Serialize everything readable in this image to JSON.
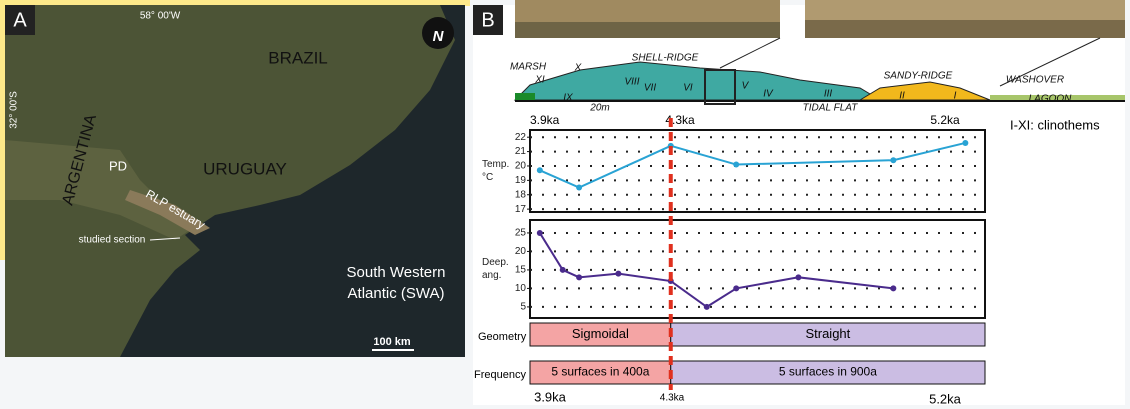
{
  "panel_a": {
    "label": "A",
    "longitude": "58° 00'W",
    "latitude": "32° 00'S",
    "places": [
      "BRAZIL",
      "ARGENTINA",
      "URUGUAY",
      "PD",
      "RLP estuary",
      "studied section"
    ],
    "ocean": [
      "South Western",
      "Atlantic (SWA)"
    ],
    "scale": "100 km",
    "north": "N"
  },
  "panel_b": {
    "label": "B",
    "section": {
      "labels": [
        "SHELL-RIDGE",
        "SANDY-RIDGE",
        "MARSH",
        "WASHOVER",
        "LAGOON",
        "TIDAL FLAT",
        "20m"
      ],
      "clinothems": [
        "XI",
        "X",
        "IX",
        "VIII",
        "VII",
        "VI",
        "V",
        "IV",
        "III",
        "II",
        "I"
      ]
    },
    "age_labels_top": [
      "3.9ka",
      "4.3ka",
      "5.2ka"
    ],
    "legend": "I-XI: clinothems",
    "reference_line": 4.3,
    "geometry": {
      "label": "Geometry",
      "values": [
        "Sigmoidal",
        "Straight"
      ]
    },
    "frequency": {
      "label": "Frequency",
      "values": [
        "5 surfaces in 400a",
        "5 surfaces in 900a"
      ]
    },
    "age_labels_bottom": [
      "3.9ka",
      "4.3ka",
      "5.2ka"
    ]
  },
  "chart_data": [
    {
      "type": "line",
      "y_label": [
        "Temp.",
        "°C"
      ],
      "color": "#29a3d4",
      "xlim": [
        3.87,
        5.26
      ],
      "ylim": [
        16.8,
        22.5
      ],
      "yticks": [
        17,
        18,
        19,
        20,
        21,
        22
      ],
      "grid": true,
      "x": [
        3.9,
        4.02,
        4.3,
        4.5,
        4.98,
        5.2
      ],
      "values": [
        19.7,
        18.5,
        21.4,
        20.1,
        20.4,
        21.6
      ]
    },
    {
      "type": "line",
      "y_label": [
        "Deep.",
        "ang."
      ],
      "color": "#4a2b8c",
      "xlim": [
        3.87,
        5.26
      ],
      "ylim": [
        2,
        28.5
      ],
      "yticks": [
        5,
        10,
        15,
        20,
        25
      ],
      "grid": true,
      "x": [
        3.9,
        3.97,
        4.02,
        4.14,
        4.3,
        4.41,
        4.5,
        4.69,
        4.98
      ],
      "values": [
        25,
        15,
        13,
        14,
        12,
        5,
        10,
        13,
        10
      ]
    }
  ]
}
